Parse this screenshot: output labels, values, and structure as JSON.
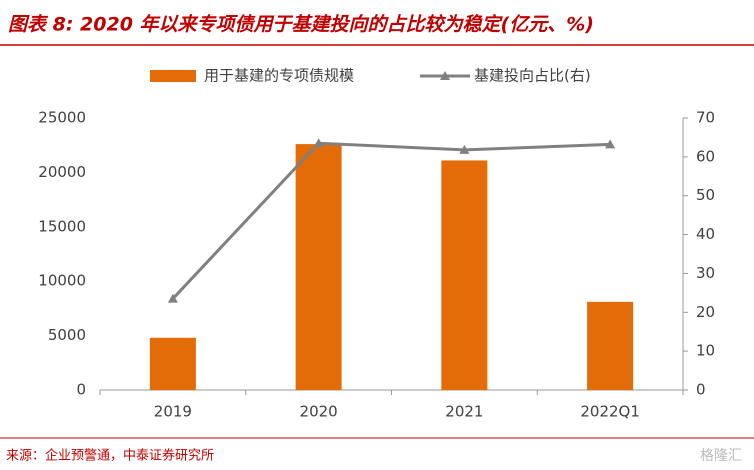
{
  "chart_data": {
    "type": "bar",
    "title": "图表 8: 2020 年以来专项债用于基建投向的占比较为稳定(亿元、%)",
    "categories": [
      "2019",
      "2020",
      "2021",
      "2022Q1"
    ],
    "series": [
      {
        "name": "用于基建的专项债规模",
        "type": "bar",
        "color": "#e36c09",
        "values": [
          4800,
          22600,
          21100,
          8100
        ]
      },
      {
        "name": "基建投向占比(右)",
        "type": "line",
        "axis": "y2",
        "color": "#808080",
        "values": [
          23.5,
          63.5,
          61.8,
          63.2
        ]
      }
    ],
    "ylim": [
      0,
      25000
    ],
    "yticks": [
      0,
      5000,
      10000,
      15000,
      20000,
      25000
    ],
    "y2lim": [
      0,
      70
    ],
    "y2ticks": [
      0,
      10,
      20,
      30,
      40,
      50,
      60,
      70
    ],
    "grid": false,
    "legend": "top",
    "source": "来源：企业预警通，中泰证券研究所",
    "watermark": "格隆汇"
  }
}
